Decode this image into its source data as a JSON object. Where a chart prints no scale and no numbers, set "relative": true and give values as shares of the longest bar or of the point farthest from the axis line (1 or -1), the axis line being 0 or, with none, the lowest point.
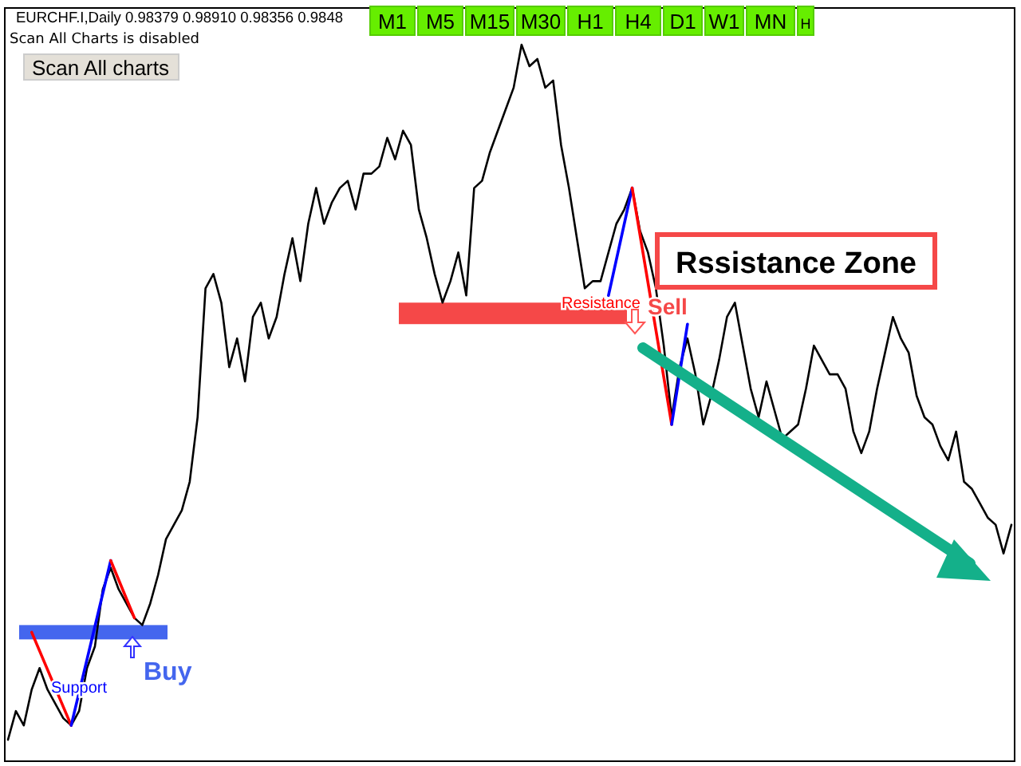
{
  "chart_data": {
    "type": "line",
    "relative": true,
    "title": "EURCHF.I,Daily  0.98379 0.98910 0.98356 0.9848",
    "subtitle": "Scan All Charts is disabled",
    "categories": [
      null,
      null,
      null,
      null,
      null,
      null,
      null,
      null,
      null,
      null,
      null,
      null,
      null,
      null,
      null,
      null,
      null,
      null,
      null,
      null,
      null,
      null,
      null,
      null,
      null,
      null,
      null,
      null,
      null,
      null,
      null,
      null,
      null,
      null,
      null,
      null,
      null,
      null,
      null,
      null,
      null,
      null,
      null,
      null,
      null,
      null,
      null,
      null,
      null,
      null,
      null,
      null,
      null,
      null,
      null,
      null,
      null,
      null,
      null,
      null,
      null,
      null,
      null,
      null,
      null,
      null,
      null,
      null,
      null,
      null,
      null,
      null,
      null,
      null,
      null,
      null,
      null,
      null,
      null,
      null,
      null,
      null,
      null,
      null,
      null,
      null,
      null,
      null,
      null,
      null,
      null,
      null,
      null,
      null,
      null,
      null,
      null,
      null,
      null,
      null,
      null,
      null,
      null,
      null,
      null,
      null,
      null,
      null,
      null,
      null,
      null,
      null,
      null,
      null,
      null,
      null,
      null,
      null,
      null,
      null,
      null,
      null,
      null,
      null,
      null,
      null,
      null,
      null
    ],
    "series": [
      {
        "color": "#000000",
        "values": [
          0.03,
          0.07,
          0.05,
          0.1,
          0.13,
          0.1,
          0.08,
          0.06,
          0.05,
          0.07,
          0.13,
          0.16,
          0.24,
          0.27,
          0.24,
          0.22,
          0.2,
          0.19,
          0.22,
          0.26,
          0.31,
          0.33,
          0.35,
          0.39,
          0.48,
          0.66,
          0.68,
          0.64,
          0.55,
          0.59,
          0.53,
          0.62,
          0.64,
          0.59,
          0.62,
          0.68,
          0.73,
          0.67,
          0.75,
          0.8,
          0.75,
          0.78,
          0.8,
          0.81,
          0.77,
          0.82,
          0.82,
          0.83,
          0.87,
          0.84,
          0.88,
          0.86,
          0.77,
          0.73,
          0.68,
          0.64,
          0.67,
          0.71,
          0.65,
          0.8,
          0.81,
          0.85,
          0.88,
          0.91,
          0.94,
          1.0,
          0.97,
          0.98,
          0.94,
          0.95,
          0.86,
          0.8,
          0.73,
          0.66,
          0.67,
          0.67,
          0.71,
          0.75,
          0.77,
          0.8,
          0.74,
          0.71,
          0.66,
          0.58,
          0.48,
          0.55,
          0.59,
          0.54,
          0.47,
          0.51,
          0.56,
          0.62,
          0.64,
          0.58,
          0.52,
          0.48,
          0.53,
          0.49,
          0.45,
          0.46,
          0.47,
          0.52,
          0.58,
          0.56,
          0.54,
          0.54,
          0.52,
          0.46,
          0.43,
          0.46,
          0.52,
          0.57,
          0.62,
          0.59,
          0.57,
          0.51,
          0.48,
          0.47,
          0.44,
          0.42,
          0.46,
          0.39,
          0.38,
          0.36,
          0.34,
          0.33,
          0.29,
          0.33
        ]
      },
      {
        "color": "#ff0000",
        "values": [
          null,
          null,
          null,
          0.18,
          null,
          null,
          null,
          null,
          0.05,
          null,
          null,
          null,
          null,
          null,
          null,
          null,
          null,
          null,
          null,
          null,
          null,
          null,
          null,
          null,
          null,
          null,
          null,
          null,
          null,
          null,
          null,
          null,
          null,
          null,
          null,
          null,
          null,
          null,
          null,
          null,
          null,
          null,
          null,
          null,
          null,
          null,
          null,
          null,
          null,
          null,
          null,
          null,
          null,
          null,
          null,
          null,
          null,
          null,
          null,
          null,
          null,
          null,
          null,
          null,
          null,
          null,
          null,
          null,
          null,
          null,
          null,
          null,
          null,
          null,
          null,
          null,
          null,
          null,
          null,
          null,
          null,
          null,
          null,
          null,
          null,
          null,
          null,
          null,
          null,
          null,
          null,
          null,
          null,
          null,
          null,
          null,
          null,
          null,
          null,
          null,
          null,
          null,
          null,
          null,
          null,
          null,
          null,
          null,
          null,
          null,
          null,
          null,
          null,
          null,
          null,
          null,
          null,
          null,
          null,
          null,
          null,
          null,
          null,
          null,
          null,
          null,
          null,
          null
        ]
      },
      {
        "color": "#0000ff",
        "values": [
          null,
          null,
          null,
          null,
          null,
          null,
          null,
          null,
          0.05,
          null,
          null,
          null,
          null,
          0.28,
          null,
          null,
          null,
          null,
          null,
          null,
          null,
          null,
          null,
          null,
          null,
          null,
          null,
          null,
          null,
          null,
          null,
          null,
          null,
          null,
          null,
          null,
          null,
          null,
          null,
          null,
          null,
          null,
          null,
          null,
          null,
          null,
          null,
          null,
          null,
          null,
          null,
          null,
          null,
          null,
          null,
          null,
          null,
          null,
          null,
          null,
          null,
          null,
          null,
          null,
          null,
          null,
          null,
          null,
          null,
          null,
          null,
          null,
          null,
          null,
          null,
          null,
          null,
          null,
          null,
          null,
          null,
          null,
          null,
          null,
          null,
          null,
          null,
          null,
          null,
          null,
          null,
          null,
          null,
          null,
          null,
          null,
          null,
          null,
          null,
          null,
          null,
          null,
          null,
          null,
          null,
          null,
          null,
          null,
          null,
          null,
          null,
          null,
          null,
          null,
          null,
          null,
          null,
          null,
          null,
          null,
          null,
          null,
          null,
          null,
          null,
          null,
          null,
          null
        ]
      },
      {
        "color": "#ff0000",
        "values": [
          null,
          null,
          null,
          null,
          null,
          null,
          null,
          null,
          null,
          null,
          null,
          null,
          null,
          0.28,
          null,
          null,
          0.2,
          null,
          null,
          null,
          null,
          null,
          null,
          null,
          null,
          null,
          null,
          null,
          null,
          null,
          null,
          null,
          null,
          null,
          null,
          null,
          null,
          null,
          null,
          null,
          null,
          null,
          null,
          null,
          null,
          null,
          null,
          null,
          null,
          null,
          null,
          null,
          null,
          null,
          null,
          null,
          null,
          null,
          null,
          null,
          null,
          null,
          null,
          null,
          null,
          null,
          null,
          null,
          null,
          null,
          null,
          null,
          null,
          null,
          null,
          null,
          null,
          null,
          null,
          null,
          null,
          null,
          null,
          null,
          null,
          null,
          null,
          null,
          null,
          null,
          null,
          null,
          null,
          null,
          null,
          null,
          null,
          null,
          null,
          null,
          null,
          null,
          null,
          null,
          null,
          null,
          null,
          null,
          null,
          null,
          null,
          null,
          null,
          null,
          null,
          null,
          null,
          null,
          null,
          null,
          null,
          null,
          null,
          null,
          null,
          null,
          null,
          null
        ]
      },
      {
        "color": "#0000ff",
        "values": [
          null,
          null,
          null,
          null,
          null,
          null,
          null,
          null,
          null,
          null,
          null,
          null,
          null,
          null,
          null,
          null,
          null,
          null,
          null,
          null,
          null,
          null,
          null,
          null,
          null,
          null,
          null,
          null,
          null,
          null,
          null,
          null,
          null,
          null,
          null,
          null,
          null,
          null,
          null,
          null,
          null,
          null,
          null,
          null,
          null,
          null,
          null,
          null,
          null,
          null,
          null,
          null,
          null,
          null,
          null,
          null,
          null,
          null,
          null,
          null,
          null,
          null,
          null,
          null,
          null,
          null,
          null,
          null,
          null,
          null,
          null,
          null,
          null,
          null,
          null,
          null,
          0.65,
          null,
          null,
          0.8,
          null,
          null,
          null,
          null,
          null,
          null,
          null,
          null,
          null,
          null,
          null,
          null,
          null,
          null,
          null,
          null,
          null,
          null,
          null,
          null,
          null,
          null,
          null,
          null,
          null,
          null,
          null,
          null,
          null,
          null,
          null,
          null,
          null,
          null,
          null,
          null,
          null,
          null,
          null,
          null,
          null,
          null,
          null,
          null,
          null,
          null,
          null,
          null
        ]
      },
      {
        "color": "#ff0000",
        "values": [
          null,
          null,
          null,
          null,
          null,
          null,
          null,
          null,
          null,
          null,
          null,
          null,
          null,
          null,
          null,
          null,
          null,
          null,
          null,
          null,
          null,
          null,
          null,
          null,
          null,
          null,
          null,
          null,
          null,
          null,
          null,
          null,
          null,
          null,
          null,
          null,
          null,
          null,
          null,
          null,
          null,
          null,
          null,
          null,
          null,
          null,
          null,
          null,
          null,
          null,
          null,
          null,
          null,
          null,
          null,
          null,
          null,
          null,
          null,
          null,
          null,
          null,
          null,
          null,
          null,
          null,
          null,
          null,
          null,
          null,
          null,
          null,
          null,
          null,
          null,
          null,
          null,
          null,
          null,
          0.8,
          null,
          null,
          null,
          null,
          0.47,
          null,
          null,
          null,
          null,
          null,
          null,
          null,
          null,
          null,
          null,
          null,
          null,
          null,
          null,
          null,
          null,
          null,
          null,
          null,
          null,
          null,
          null,
          null,
          null,
          null,
          null,
          null,
          null,
          null,
          null,
          null,
          null,
          null,
          null,
          null,
          null,
          null,
          null,
          null,
          null,
          null,
          null,
          null
        ]
      },
      {
        "color": "#0000ff",
        "values": [
          null,
          null,
          null,
          null,
          null,
          null,
          null,
          null,
          null,
          null,
          null,
          null,
          null,
          null,
          null,
          null,
          null,
          null,
          null,
          null,
          null,
          null,
          null,
          null,
          null,
          null,
          null,
          null,
          null,
          null,
          null,
          null,
          null,
          null,
          null,
          null,
          null,
          null,
          null,
          null,
          null,
          null,
          null,
          null,
          null,
          null,
          null,
          null,
          null,
          null,
          null,
          null,
          null,
          null,
          null,
          null,
          null,
          null,
          null,
          null,
          null,
          null,
          null,
          null,
          null,
          null,
          null,
          null,
          null,
          null,
          null,
          null,
          null,
          null,
          null,
          null,
          null,
          null,
          null,
          null,
          null,
          null,
          null,
          null,
          0.47,
          null,
          0.61,
          null,
          null,
          null,
          null,
          null,
          null,
          null,
          null,
          null,
          null,
          null,
          null,
          null,
          null,
          null,
          null,
          null,
          null,
          null,
          null,
          null,
          null,
          null,
          null,
          null,
          null,
          null,
          null,
          null,
          null,
          null,
          null,
          null,
          null,
          null,
          null,
          null,
          null,
          null,
          null,
          null
        ]
      }
    ],
    "bands": [
      {
        "axis": "y",
        "from": 0.17,
        "to": 0.19,
        "label": "Support",
        "color": "#4466ee"
      },
      {
        "axis": "y",
        "from": 0.61,
        "to": 0.64,
        "label": "Resistance",
        "color": "#f54848"
      }
    ],
    "annotations": [
      "Scan All charts",
      "M1",
      "M5",
      "M15",
      "M30",
      "H1",
      "H4",
      "D1",
      "W1",
      "MN",
      "H",
      "Buy",
      "Sell",
      "Rssistance Zone"
    ],
    "grid": false
  }
}
